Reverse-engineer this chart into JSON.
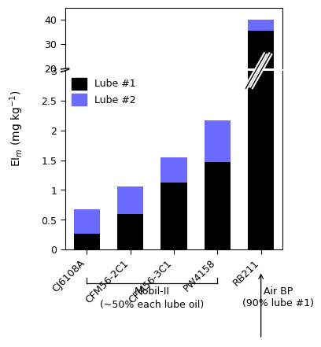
{
  "categories": [
    "CJ6108A",
    "CFM56-2C1",
    "CFM56-3C1",
    "PW4158",
    "RB211"
  ],
  "lube1_values": [
    0.27,
    0.6,
    1.13,
    1.47,
    35.5
  ],
  "lube2_values": [
    0.4,
    0.46,
    0.42,
    0.7,
    4.5
  ],
  "lube1_color": "#000000",
  "lube2_color": "#6b6bff",
  "ylabel": "EI$_m$ (mg kg$^{-1}$)",
  "ylim_lower": [
    0,
    3.0
  ],
  "ylim_upper": [
    20,
    45
  ],
  "yticks_lower": [
    0.0,
    0.5,
    1.0,
    1.5,
    2.0,
    2.5,
    3.0
  ],
  "yticks_upper": [
    20,
    30,
    40
  ],
  "legend_labels": [
    "Lube #1",
    "Lube #2"
  ],
  "mobil_label": "Mobil-II",
  "mobil_sub": "(~50% each lube oil)",
  "airbp_label": "Air BP\n(90% lube #1)",
  "bar_width": 0.6
}
